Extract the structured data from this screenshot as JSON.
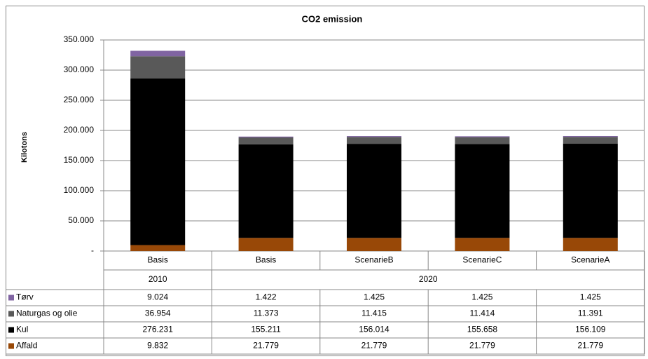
{
  "chart_data": {
    "type": "stacked-bar",
    "title": "CO2 emission",
    "y_label": "Kilotons",
    "categories": [
      "Basis",
      "Basis",
      "ScenarieB",
      "ScenarieC",
      "ScenarieA"
    ],
    "category_groups": [
      "2010",
      "2020",
      null,
      null,
      null
    ],
    "series": [
      {
        "name": "Affald",
        "color": "#984807",
        "values": [
          9832,
          21779,
          21779,
          21779,
          21779
        ],
        "value_labels": [
          "9.832",
          "21.779",
          "21.779",
          "21.779",
          "21.779"
        ]
      },
      {
        "name": "Kul",
        "color": "#000000",
        "values": [
          276231,
          155211,
          156014,
          155658,
          156109
        ],
        "value_labels": [
          "276.231",
          "155.211",
          "156.014",
          "155.658",
          "156.109"
        ]
      },
      {
        "name": "Naturgas og olie",
        "color": "#595959",
        "values": [
          36954,
          11373,
          11415,
          11414,
          11391
        ],
        "value_labels": [
          "36.954",
          "11.373",
          "11.415",
          "11.414",
          "11.391"
        ]
      },
      {
        "name": "Tørv",
        "color": "#8064a2",
        "values": [
          9024,
          1422,
          1425,
          1425,
          1425
        ],
        "value_labels": [
          "9.024",
          "1.422",
          "1.425",
          "1.425",
          "1.425"
        ]
      }
    ],
    "ylim": [
      0,
      350000
    ],
    "yticks": [
      {
        "value": 0,
        "label": "-"
      },
      {
        "value": 50000,
        "label": "50.000"
      },
      {
        "value": 100000,
        "label": "100.000"
      },
      {
        "value": 150000,
        "label": "150.000"
      },
      {
        "value": 200000,
        "label": "200.000"
      },
      {
        "value": 250000,
        "label": "250.000"
      },
      {
        "value": 300000,
        "label": "300.000"
      },
      {
        "value": 350000,
        "label": "350.000"
      }
    ],
    "grid": true
  }
}
